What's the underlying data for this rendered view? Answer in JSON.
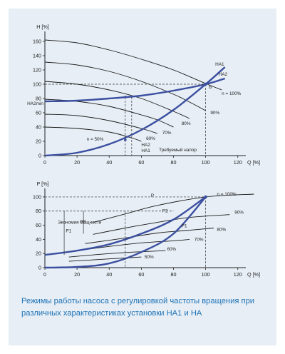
{
  "caption": "Режимы работы насоса с регулировкой частоты вращения при различных характеристиках установки НА1 и НА",
  "chart_data": [
    {
      "type": "line",
      "title": "",
      "ylabel": "H [%]",
      "xlabel": "Q [%]",
      "xlim": [
        0,
        125
      ],
      "ylim": [
        0,
        170
      ],
      "xticks": [
        0,
        20,
        40,
        60,
        80,
        100,
        120
      ],
      "yticks": [
        0,
        20,
        40,
        60,
        80,
        100,
        120,
        140,
        160
      ],
      "xtick_labels": [
        "0",
        "20",
        "40",
        "60",
        "80",
        "100",
        "120"
      ],
      "ytick_labels": [
        "0",
        "20",
        "40",
        "60",
        "80",
        "100",
        "120",
        "140",
        "160"
      ],
      "series": [
        {
          "name": "n = 100%",
          "kind": "pump",
          "x": [
            0,
            20,
            40,
            60,
            80,
            100,
            110
          ],
          "y": [
            162,
            158,
            148,
            135,
            120,
            101,
            92
          ]
        },
        {
          "name": "90%",
          "kind": "pump",
          "x": [
            0,
            20,
            40,
            60,
            80,
            90,
            100
          ],
          "y": [
            131,
            127,
            118,
            104,
            86,
            75,
            63
          ]
        },
        {
          "name": "80%",
          "kind": "pump",
          "x": [
            0,
            20,
            40,
            60,
            80,
            90
          ],
          "y": [
            104,
            100,
            92,
            80,
            62,
            52
          ]
        },
        {
          "name": "70%",
          "kind": "pump",
          "x": [
            0,
            20,
            40,
            60,
            70,
            80
          ],
          "y": [
            79,
            76,
            69,
            57,
            50,
            40
          ]
        },
        {
          "name": "60%",
          "kind": "pump",
          "x": [
            0,
            20,
            40,
            60,
            70
          ],
          "y": [
            58,
            56,
            49,
            38,
            31
          ]
        },
        {
          "name": "n = 50%",
          "kind": "pump",
          "x": [
            0,
            20,
            40,
            55,
            60
          ],
          "y": [
            40,
            38,
            33,
            24,
            20
          ]
        },
        {
          "name": "НА1",
          "kind": "system",
          "x": [
            0,
            20,
            40,
            60,
            80,
            100,
            112
          ],
          "y": [
            0,
            4,
            16,
            36,
            64,
            100,
            124
          ]
        },
        {
          "name": "НА2",
          "kind": "system",
          "x": [
            0,
            20,
            40,
            60,
            80,
            100,
            112
          ],
          "y": [
            76,
            77,
            80,
            84,
            91,
            100,
            108
          ]
        }
      ],
      "annotations": [
        {
          "text": "НА1",
          "x": 106,
          "y": 126
        },
        {
          "text": "НА2",
          "x": 108,
          "y": 112
        },
        {
          "text": "n = 100%",
          "x": 110,
          "y": 85
        },
        {
          "text": "90%",
          "x": 103,
          "y": 58
        },
        {
          "text": "80%",
          "x": 85,
          "y": 43
        },
        {
          "text": "70%",
          "x": 73,
          "y": 30
        },
        {
          "text": "60%",
          "x": 63,
          "y": 22
        },
        {
          "text": "n = 50%",
          "x": 26,
          "y": 21
        },
        {
          "text": "НА2",
          "x": 60,
          "y": 13
        },
        {
          "text": "НА1",
          "x": 60,
          "y": 5
        },
        {
          "text": "Требуемый напор",
          "x": 71,
          "y": 6
        },
        {
          "text": "НА2min",
          "x": -11,
          "y": 71
        },
        {
          "text": "B",
          "x": 102,
          "y": 94
        }
      ]
    },
    {
      "type": "line",
      "title": "",
      "ylabel": "P [%]",
      "xlabel": "Q [%]",
      "xlim": [
        0,
        125
      ],
      "ylim": [
        0,
        108
      ],
      "xticks": [
        0,
        20,
        40,
        60,
        80,
        100,
        120
      ],
      "yticks": [
        0,
        20,
        40,
        60,
        80,
        100
      ],
      "xtick_labels": [
        "0",
        "20",
        "40",
        "60",
        "80",
        "100",
        "120"
      ],
      "ytick_labels": [
        "0",
        "20",
        "40",
        "60",
        "80",
        "100"
      ],
      "series": [
        {
          "name": "n = 100%",
          "kind": "power",
          "x": [
            30,
            50,
            70,
            100,
            130
          ],
          "y": [
            64,
            76,
            88,
            100,
            104
          ]
        },
        {
          "name": "90%",
          "kind": "power",
          "x": [
            30,
            50,
            70,
            90,
            115
          ],
          "y": [
            47,
            56,
            64,
            71,
            75
          ]
        },
        {
          "name": "80%",
          "kind": "power",
          "x": [
            25,
            50,
            70,
            85,
            105
          ],
          "y": [
            34,
            42,
            49,
            52,
            56
          ]
        },
        {
          "name": "70%",
          "kind": "power",
          "x": [
            20,
            40,
            60,
            80,
            90
          ],
          "y": [
            24,
            30,
            35,
            38,
            40
          ]
        },
        {
          "name": "60%",
          "kind": "power",
          "x": [
            15,
            35,
            55,
            75
          ],
          "y": [
            15,
            19,
            22,
            24
          ]
        },
        {
          "name": "50%",
          "kind": "power",
          "x": [
            15,
            30,
            45,
            60
          ],
          "y": [
            9,
            11,
            13,
            15
          ]
        },
        {
          "name": "P1",
          "kind": "operating",
          "x": [
            0,
            20,
            40,
            60,
            80,
            100
          ],
          "y": [
            0,
            1,
            6,
            22,
            48,
            100
          ]
        },
        {
          "name": "P2",
          "kind": "operating",
          "x": [
            0,
            20,
            40,
            60,
            80,
            100
          ],
          "y": [
            18,
            24,
            33,
            48,
            68,
            100
          ]
        }
      ],
      "annotations": [
        {
          "text": "P",
          "x": 66,
          "y": 100
        },
        {
          "text": "n = 100%",
          "x": 107,
          "y": 102
        },
        {
          "text": "P2",
          "x": 73,
          "y": 78
        },
        {
          "text": "90%",
          "x": 118,
          "y": 76
        },
        {
          "text": "P1",
          "x": 85,
          "y": 57
        },
        {
          "text": "80%",
          "x": 107,
          "y": 52
        },
        {
          "text": "70%",
          "x": 93,
          "y": 38
        },
        {
          "text": "60%",
          "x": 76,
          "y": 24
        },
        {
          "text": "50%",
          "x": 62,
          "y": 13
        },
        {
          "text": "P1",
          "x": 13,
          "y": 50
        },
        {
          "text": "P2",
          "x": 22,
          "y": 63
        },
        {
          "text": "Экономия мощности",
          "x": 8,
          "y": 62
        }
      ]
    }
  ]
}
